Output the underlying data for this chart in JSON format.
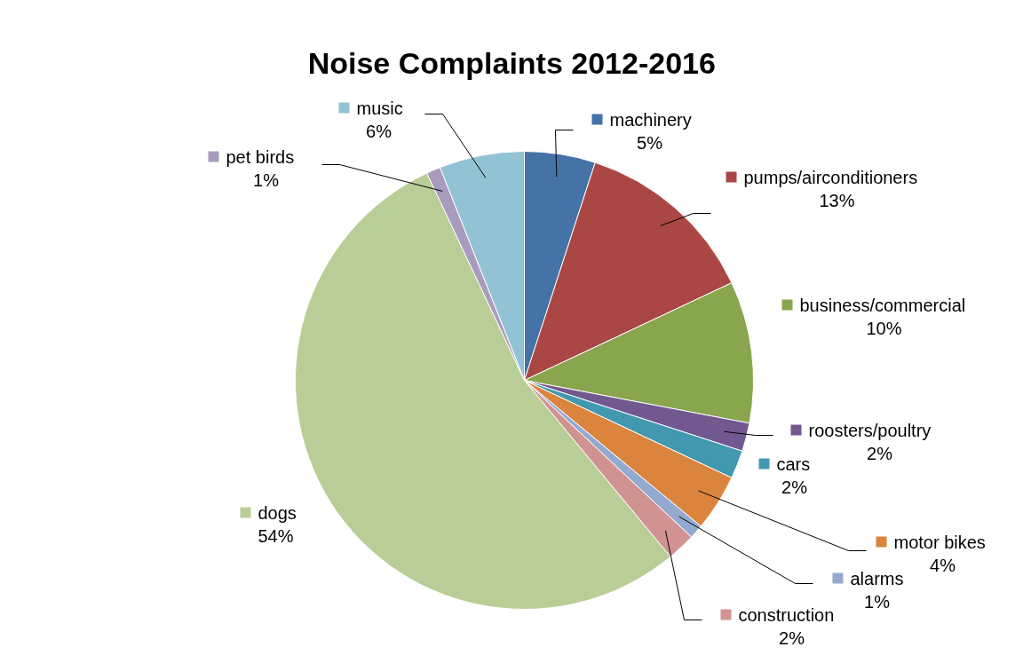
{
  "chart_data": {
    "type": "pie",
    "title": "Noise Complaints  2012-2016",
    "categories": [
      "machinery",
      "pumps/airconditioners",
      "business/commercial",
      "roosters/poultry",
      "cars",
      "motor bikes",
      "alarms",
      "construction",
      "dogs",
      "pet birds",
      "music"
    ],
    "values": [
      5,
      13,
      10,
      2,
      2,
      4,
      1,
      2,
      54,
      1,
      6
    ],
    "value_labels": [
      "5%",
      "13%",
      "10%",
      "2%",
      "2%",
      "4%",
      "1%",
      "2%",
      "54%",
      "1%",
      "6%"
    ],
    "colors": [
      "#4572a7",
      "#aa4643",
      "#89a54e",
      "#71588f",
      "#4198af",
      "#db843d",
      "#93a9cf",
      "#d19392",
      "#b9cd96",
      "#a99bbd",
      "#92c3d4"
    ],
    "legend": "right"
  }
}
